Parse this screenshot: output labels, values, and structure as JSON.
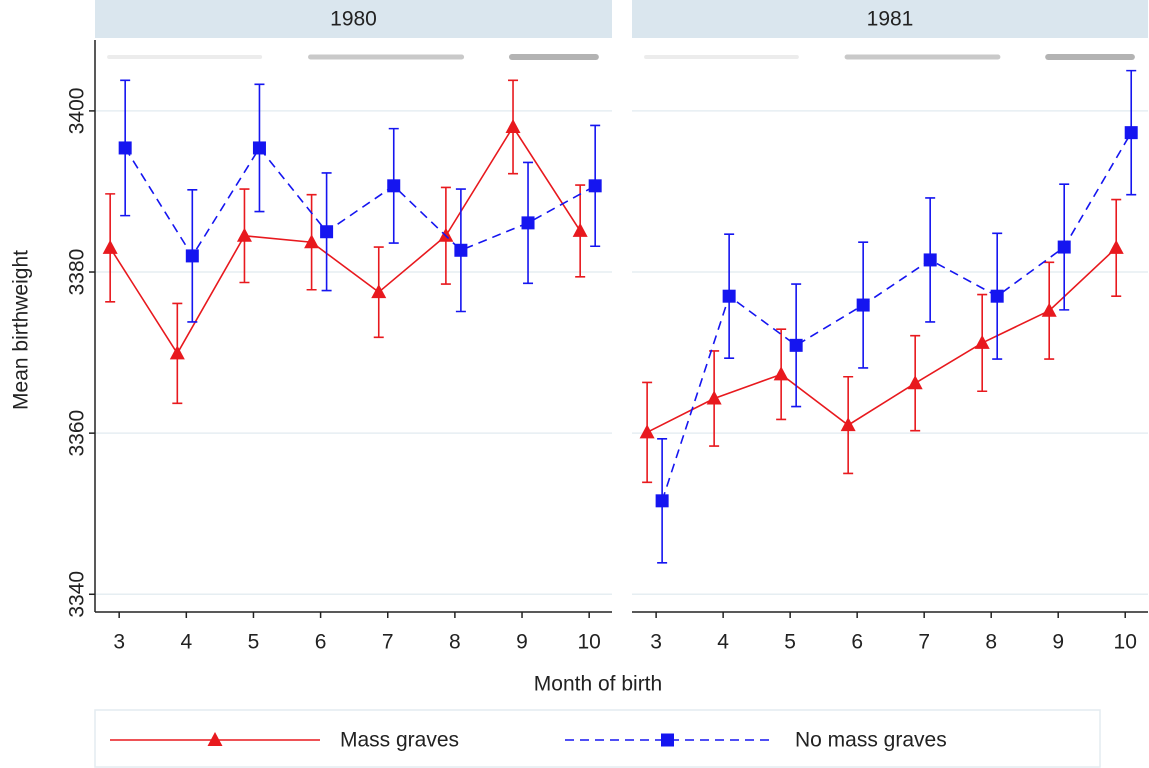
{
  "y_label": "Mean birthweight",
  "x_label": "Month of birth",
  "chart_data": [
    {
      "type": "line",
      "title": "1980",
      "x": [
        3,
        4,
        5,
        6,
        7,
        8,
        9,
        10
      ],
      "xlim": [
        2.64,
        10.34
      ],
      "ylim": [
        3337.8,
        3408.8
      ],
      "yticks": [
        3340,
        3360,
        3380,
        3400
      ],
      "grid": true,
      "series": [
        {
          "name": "Mass graves",
          "color": "#e8191e",
          "marker": "triangle",
          "line_style": "solid",
          "values": [
            3383.0,
            3369.9,
            3384.5,
            3383.7,
            3377.5,
            3384.5,
            3398.0,
            3385.1
          ],
          "errors": [
            6.7,
            6.2,
            5.8,
            5.9,
            5.6,
            6.0,
            5.8,
            5.7
          ]
        },
        {
          "name": "No mass graves",
          "color": "#1515f0",
          "marker": "square",
          "line_style": "dashed",
          "values": [
            3395.4,
            3382.0,
            3395.4,
            3385.0,
            3390.7,
            3382.7,
            3386.1,
            3390.7
          ],
          "errors": [
            8.4,
            8.2,
            7.9,
            7.3,
            7.1,
            7.6,
            7.5,
            7.5
          ]
        }
      ]
    },
    {
      "type": "line",
      "title": "1981",
      "x": [
        3,
        4,
        5,
        6,
        7,
        8,
        9,
        10
      ],
      "xlim": [
        2.64,
        10.34
      ],
      "ylim": [
        3337.8,
        3408.8
      ],
      "grid": true,
      "series": [
        {
          "color": "#e8191e",
          "marker": "triangle",
          "line_style": "solid",
          "values": [
            3360.1,
            3364.3,
            3367.3,
            3361.0,
            3366.2,
            3371.2,
            3375.2,
            3383.0
          ],
          "errors": [
            6.2,
            5.9,
            5.6,
            6.0,
            5.9,
            6.0,
            6.0,
            6.0
          ]
        },
        {
          "color": "#1515f0",
          "marker": "square",
          "line_style": "dashed",
          "values": [
            3351.6,
            3377.0,
            3370.9,
            3375.9,
            3381.5,
            3377.0,
            3383.1,
            3397.3
          ],
          "errors": [
            7.7,
            7.7,
            7.6,
            7.8,
            7.7,
            7.8,
            7.8,
            7.7
          ]
        }
      ]
    }
  ]
}
